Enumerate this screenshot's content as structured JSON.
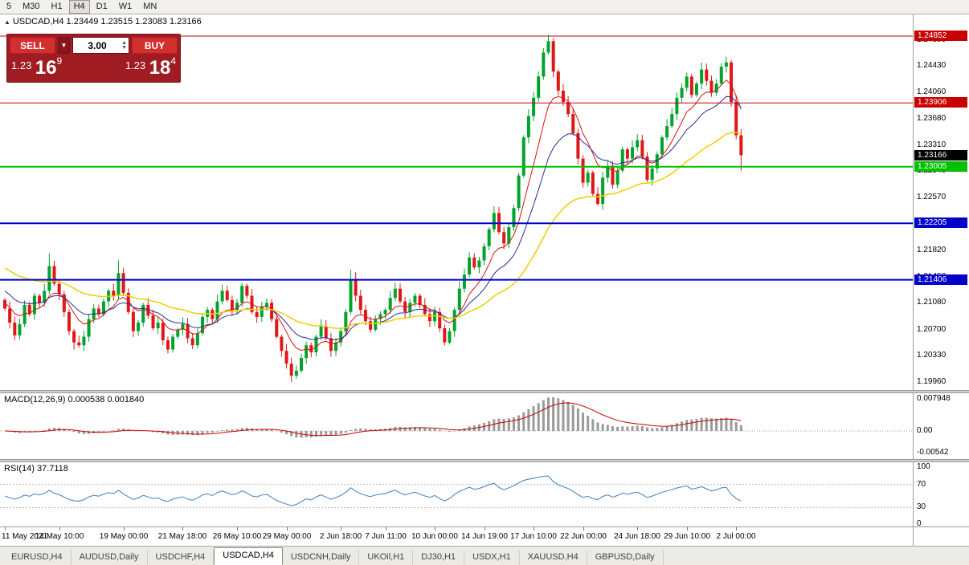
{
  "window": {
    "toolbar_periods": [
      {
        "label": "5",
        "active": false
      },
      {
        "label": "M30",
        "active": false
      },
      {
        "label": "H1",
        "active": false
      },
      {
        "label": "H4",
        "active": true
      },
      {
        "label": "D1",
        "active": false
      },
      {
        "label": "W1",
        "active": false
      },
      {
        "label": "MN",
        "active": false
      }
    ]
  },
  "chart": {
    "title_marker": "▲",
    "title_text": "USDCAD,H4 1.23449 1.23515 1.23083 1.23166"
  },
  "trade_panel": {
    "sell_label": "SELL",
    "buy_label": "BUY",
    "volume": "3.00",
    "bid": {
      "prefix": "1.23",
      "big": "16",
      "sup": "9"
    },
    "ask": {
      "prefix": "1.23",
      "big": "18",
      "sup": "4"
    }
  },
  "price_axis": {
    "ticks": [
      "1.24800",
      "1.24430",
      "1.24060",
      "1.23680",
      "1.23310",
      "1.22940",
      "1.22570",
      "1.22200",
      "1.21820",
      "1.21450",
      "1.21080",
      "1.20700",
      "1.20330",
      "1.19960"
    ]
  },
  "levels": {
    "hlines": [
      {
        "price": 1.24852,
        "label": "1.24852",
        "color": "#c80000",
        "width": 1
      },
      {
        "price": 1.23906,
        "label": "1.23906",
        "color": "#c80000",
        "width": 1
      },
      {
        "price": 1.23005,
        "label": "1.23005",
        "color": "#00c000",
        "width": 2
      },
      {
        "price": 1.22205,
        "label": "1.22205",
        "color": "#0000c8",
        "width": 2
      },
      {
        "price": 1.21406,
        "label": "1.21406",
        "color": "#0000c8",
        "width": 2
      }
    ],
    "current": {
      "price": 1.23166,
      "label": "1.23166",
      "color": "#000000"
    }
  },
  "macd_panel": {
    "header": "MACD(12,26,9) 0.000538 0.001840",
    "axis_labels": [
      "0.007948",
      "0.00",
      "-0.00542"
    ]
  },
  "rsi_panel": {
    "header": "RSI(14) 37.7118",
    "axis_labels": [
      "100",
      "70",
      "30",
      "0"
    ]
  },
  "time_axis": [
    {
      "index": 0,
      "label": "11 May 2021"
    },
    {
      "index": 11,
      "label": "14 May 10:00"
    },
    {
      "index": 24,
      "label": "19 May 00:00"
    },
    {
      "index": 36,
      "label": "21 May 18:00"
    },
    {
      "index": 47,
      "label": "26 May 10:00"
    },
    {
      "index": 57,
      "label": "29 May 00:00"
    },
    {
      "index": 68,
      "label": "2 Jun 18:00"
    },
    {
      "index": 77,
      "label": "7 Jun 11:00"
    },
    {
      "index": 87,
      "label": "10 Jun 00:00"
    },
    {
      "index": 97,
      "label": "14 Jun 19:00"
    },
    {
      "index": 107,
      "label": "17 Jun 10:00"
    },
    {
      "index": 117,
      "label": "22 Jun 00:00"
    },
    {
      "index": 128,
      "label": "24 Jun 18:00"
    },
    {
      "index": 138,
      "label": "29 Jun 10:00"
    },
    {
      "index": 148,
      "label": "2 Jul 00:00"
    }
  ],
  "tabs": [
    {
      "label": "EURUSD,H4",
      "active": false
    },
    {
      "label": "AUDUSD,Daily",
      "active": false
    },
    {
      "label": "USDCHF,H4",
      "active": false
    },
    {
      "label": "USDCAD,H4",
      "active": true
    },
    {
      "label": "USDCNH,Daily",
      "active": false
    },
    {
      "label": "UKOil,H1",
      "active": false
    },
    {
      "label": "DJ30,H1",
      "active": false
    },
    {
      "label": "USDX,H1",
      "active": false
    },
    {
      "label": "XAUUSD,H4",
      "active": false
    },
    {
      "label": "GBPUSD,Daily",
      "active": false
    }
  ],
  "chart_data": {
    "type": "candlestick",
    "symbol": "USDCAD",
    "timeframe": "H4",
    "ohlc_current": {
      "open": 1.23449,
      "high": 1.23515,
      "low": 1.23083,
      "close": 1.23166
    },
    "price_range": {
      "max": 1.24852,
      "min": 1.1996
    },
    "first_open": 1.2112,
    "closes": [
      1.21,
      1.208,
      1.2062,
      1.2078,
      1.2105,
      1.2092,
      1.2118,
      1.2108,
      1.2125,
      1.216,
      1.2135,
      1.212,
      1.2095,
      1.2068,
      1.2052,
      1.2048,
      1.206,
      1.2085,
      1.21,
      1.2092,
      1.211,
      1.2125,
      1.2118,
      1.215,
      1.2122,
      1.2095,
      1.2068,
      1.208,
      1.2105,
      1.209,
      1.2072,
      1.208,
      1.2055,
      1.2042,
      1.206,
      1.207,
      1.2078,
      1.2058,
      1.2048,
      1.2065,
      1.2088,
      1.2098,
      1.2085,
      1.211,
      1.2125,
      1.2112,
      1.2098,
      1.2108,
      1.2132,
      1.2118,
      1.2095,
      1.2088,
      1.2102,
      1.2108,
      1.2085,
      1.206,
      1.204,
      1.2022,
      1.2005,
      1.2012,
      1.203,
      1.2048,
      1.2038,
      1.206,
      1.2075,
      1.2058,
      1.204,
      1.2052,
      1.2068,
      1.2095,
      1.2142,
      1.2118,
      1.2098,
      1.2082,
      1.207,
      1.2085,
      1.2092,
      1.2098,
      1.2115,
      1.2128,
      1.211,
      1.2095,
      1.2108,
      1.2118,
      1.2105,
      1.2092,
      1.2082,
      1.2095,
      1.2072,
      1.2052,
      1.2068,
      1.2098,
      1.2128,
      1.2148,
      1.2172,
      1.2158,
      1.2168,
      1.2188,
      1.2212,
      1.2235,
      1.2208,
      1.2192,
      1.2215,
      1.2242,
      1.2288,
      1.2342,
      1.2372,
      1.2398,
      1.2428,
      1.2462,
      1.2478,
      1.2435,
      1.2408,
      1.2392,
      1.2375,
      1.2348,
      1.2312,
      1.2278,
      1.2292,
      1.2262,
      1.2248,
      1.2285,
      1.2302,
      1.2275,
      1.2295,
      1.2325,
      1.2312,
      1.2328,
      1.2338,
      1.2315,
      1.2282,
      1.2298,
      1.2318,
      1.2342,
      1.2358,
      1.2375,
      1.2398,
      1.2412,
      1.2428,
      1.2402,
      1.2418,
      1.2438,
      1.2422,
      1.2405,
      1.2418,
      1.2442,
      1.2448,
      1.2392,
      1.2345,
      1.23166
    ],
    "wick_overrides": {
      "9": {
        "high": 1.2178
      },
      "14": {
        "low": 1.2042
      },
      "23": {
        "high": 1.2168
      },
      "58": {
        "low": 1.1996
      },
      "70": {
        "high": 1.2155
      },
      "110": {
        "high": 1.2487
      },
      "146": {
        "high": 1.2456
      },
      "149": {
        "low": 1.2295
      }
    },
    "moving_averages": [
      {
        "period": 8,
        "seed": 1.211,
        "color": "#e01010",
        "width": 1
      },
      {
        "period": 16,
        "seed": 1.2128,
        "color": "#2a2a9a",
        "width": 1
      },
      {
        "period": 40,
        "seed": 1.216,
        "color": "#f0cf00",
        "width": 1.5
      }
    ],
    "macd": {
      "fast": 12,
      "slow": 26,
      "signal": 9,
      "current_macd": 0.000538,
      "current_signal": 0.00184,
      "hist_color": "#9a9a9a",
      "signal_color": "#cc0000"
    },
    "rsi": {
      "period": 14,
      "current": 37.7118,
      "color": "#3f7fbf",
      "levels": [
        70,
        30
      ]
    }
  }
}
